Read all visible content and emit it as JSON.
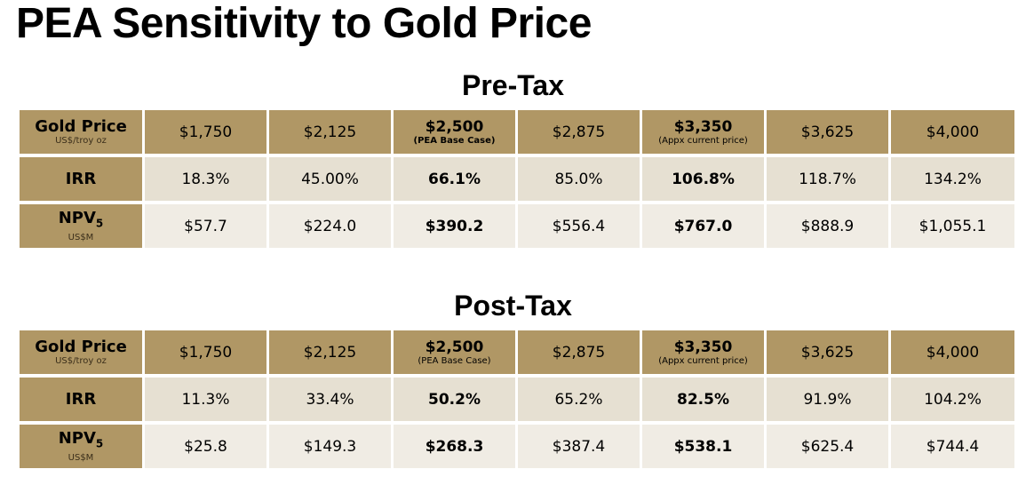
{
  "title": "PEA Sensitivity to Gold Price",
  "pre_tax": {
    "heading": "Pre-Tax",
    "gold_price": {
      "label": "Gold Price",
      "unit": "US$/troy oz",
      "values": [
        "$1,750",
        "$2,125",
        "$2,500",
        "$2,875",
        "$3,350",
        "$3,625",
        "$4,000"
      ],
      "notes": [
        "",
        "",
        "(PEA Base Case)",
        "",
        "(Appx current price)",
        "",
        ""
      ]
    },
    "irr": {
      "label": "IRR",
      "values": [
        "18.3%",
        "45.00%",
        "66.1%",
        "85.0%",
        "106.8%",
        "118.7%",
        "134.2%"
      ]
    },
    "npv": {
      "label": "NPV",
      "label_sub": "5",
      "unit": "US$M",
      "values": [
        "$57.7",
        "$224.0",
        "$390.2",
        "$556.4",
        "$767.0",
        "$888.9",
        "$1,055.1"
      ]
    }
  },
  "post_tax": {
    "heading": "Post-Tax",
    "gold_price": {
      "label": "Gold Price",
      "unit": "US$/troy oz",
      "values": [
        "$1,750",
        "$2,125",
        "$2,500",
        "$2,875",
        "$3,350",
        "$3,625",
        "$4,000"
      ],
      "notes": [
        "",
        "",
        "(PEA Base Case)",
        "",
        "(Appx current price)",
        "",
        ""
      ]
    },
    "irr": {
      "label": "IRR",
      "values": [
        "11.3%",
        "33.4%",
        "50.2%",
        "65.2%",
        "82.5%",
        "91.9%",
        "104.2%"
      ]
    },
    "npv": {
      "label": "NPV",
      "label_sub": "5",
      "unit": "US$M",
      "values": [
        "$25.8",
        "$149.3",
        "$268.3",
        "$387.4",
        "$538.1",
        "$625.4",
        "$744.4"
      ]
    }
  },
  "colors": {
    "header_gold": "#b09765",
    "row_light": "#e6e0d2",
    "row_lighter": "#f0ece4"
  }
}
